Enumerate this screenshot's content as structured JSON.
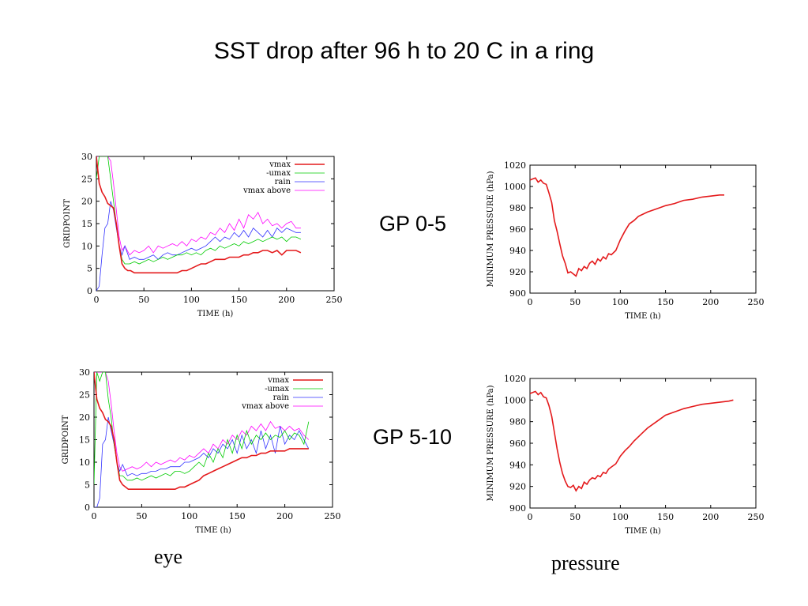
{
  "slide": {
    "title": "SST drop after 96 h to 20 C in a ring",
    "row_labels": [
      "GP 0-5",
      "GP 5-10"
    ],
    "column_labels": [
      "eye",
      "pressure"
    ]
  },
  "chart_data": [
    {
      "type": "line",
      "xlabel": "TIME (h)",
      "ylabel": "GRIDPOINT",
      "xlim": [
        0,
        250
      ],
      "ylim": [
        0,
        30
      ],
      "xticks": [
        0,
        50,
        100,
        150,
        200,
        250
      ],
      "yticks": [
        0,
        5,
        10,
        15,
        20,
        25,
        30
      ],
      "legend_position": "top-right",
      "colors": {
        "vmax": "#e41a1c",
        "umax": "#00cc00",
        "rain": "#3333ff",
        "vmax_above": "#ff00ff"
      },
      "series": [
        {
          "name": "vmax",
          "x": [
            0,
            3,
            6,
            9,
            12,
            15,
            18,
            21,
            24,
            27,
            30,
            33,
            36,
            40,
            45,
            50,
            55,
            60,
            65,
            70,
            75,
            80,
            85,
            90,
            95,
            100,
            105,
            110,
            115,
            120,
            125,
            130,
            135,
            140,
            145,
            150,
            155,
            160,
            165,
            170,
            175,
            180,
            185,
            190,
            195,
            200,
            205,
            210,
            215
          ],
          "y": [
            30,
            24,
            22,
            21,
            19.5,
            19,
            18.5,
            15,
            10,
            6,
            5,
            4.5,
            4.5,
            4,
            4,
            4,
            4,
            4,
            4,
            4,
            4,
            4,
            4,
            4.5,
            4.5,
            5,
            5.5,
            6,
            6,
            6.5,
            7,
            7,
            7,
            7.5,
            7.5,
            7.5,
            8,
            8,
            8.5,
            8.5,
            9,
            9,
            8.5,
            9,
            8,
            9,
            9,
            9,
            8.5
          ]
        },
        {
          "name": "umax",
          "x": [
            0,
            3,
            6,
            9,
            12,
            15,
            18,
            21,
            24,
            27,
            30,
            35,
            40,
            45,
            50,
            55,
            60,
            65,
            70,
            75,
            80,
            85,
            90,
            95,
            100,
            105,
            110,
            115,
            120,
            125,
            130,
            135,
            140,
            145,
            150,
            155,
            160,
            165,
            170,
            175,
            180,
            185,
            190,
            195,
            200,
            205,
            210,
            215
          ],
          "y": [
            25,
            30,
            30,
            30,
            30,
            25,
            20,
            15,
            10,
            7,
            6,
            6,
            6.5,
            6,
            6.5,
            7,
            6.5,
            7,
            7.5,
            7,
            7.5,
            8,
            8,
            8.5,
            8,
            8.5,
            8,
            9,
            9.5,
            9,
            10,
            9.5,
            10,
            10.5,
            10,
            11,
            10.5,
            11,
            11.5,
            11,
            11.5,
            12,
            11.5,
            12,
            11,
            12,
            12,
            11.5
          ]
        },
        {
          "name": "rain",
          "x": [
            0,
            3,
            6,
            9,
            12,
            15,
            18,
            21,
            24,
            27,
            30,
            35,
            40,
            45,
            50,
            55,
            60,
            65,
            70,
            75,
            80,
            85,
            90,
            95,
            100,
            105,
            110,
            115,
            120,
            125,
            130,
            135,
            140,
            145,
            150,
            155,
            160,
            165,
            170,
            175,
            180,
            185,
            190,
            195,
            200,
            205,
            210,
            215
          ],
          "y": [
            0,
            1,
            8,
            14,
            15,
            20,
            18,
            14,
            10,
            8,
            10,
            7,
            7.5,
            7,
            7,
            7.5,
            8,
            7,
            8,
            8.5,
            8,
            8,
            8.5,
            9,
            9.5,
            9,
            9.5,
            10,
            11,
            12,
            11,
            12,
            11.5,
            13,
            12,
            13.5,
            12,
            14,
            13,
            12,
            13.5,
            12,
            14,
            13,
            14,
            13.5,
            13,
            13
          ]
        },
        {
          "name": "vmax above",
          "x": [
            0,
            3,
            6,
            9,
            12,
            15,
            18,
            21,
            24,
            27,
            30,
            35,
            40,
            45,
            50,
            55,
            60,
            65,
            70,
            75,
            80,
            85,
            90,
            95,
            100,
            105,
            110,
            115,
            120,
            125,
            130,
            135,
            140,
            145,
            150,
            155,
            160,
            165,
            170,
            175,
            180,
            185,
            190,
            195,
            200,
            205,
            210,
            215
          ],
          "y": [
            30,
            30,
            30,
            30,
            30,
            29,
            24,
            18,
            12,
            9,
            10,
            8,
            9,
            8.5,
            9,
            10,
            8.5,
            10,
            9.5,
            10,
            10.5,
            10,
            11,
            10,
            11.5,
            11,
            12,
            11.5,
            13,
            12.5,
            14,
            13,
            15,
            13.5,
            16,
            14,
            17,
            16,
            17.5,
            15,
            16,
            14.5,
            15,
            14,
            15,
            15.5,
            14,
            14
          ]
        }
      ]
    },
    {
      "type": "line",
      "xlabel": "TIME (h)",
      "ylabel": "MINIMUM PRESSURE (hPa)",
      "xlim": [
        0,
        250
      ],
      "ylim": [
        900,
        1020
      ],
      "xticks": [
        0,
        50,
        100,
        150,
        200,
        250
      ],
      "yticks": [
        900,
        920,
        940,
        960,
        980,
        1000,
        1020
      ],
      "colors": {
        "pressure": "#e41a1c"
      },
      "series": [
        {
          "name": "",
          "x": [
            0,
            3,
            6,
            9,
            12,
            15,
            18,
            21,
            24,
            27,
            30,
            33,
            36,
            39,
            42,
            45,
            48,
            51,
            54,
            57,
            60,
            63,
            66,
            69,
            72,
            75,
            78,
            81,
            84,
            87,
            90,
            95,
            100,
            105,
            110,
            115,
            120,
            125,
            130,
            140,
            150,
            160,
            170,
            180,
            190,
            200,
            210,
            215
          ],
          "y": [
            1006,
            1007,
            1008,
            1004,
            1006,
            1003,
            1002,
            994,
            985,
            968,
            958,
            946,
            935,
            928,
            919,
            920,
            918,
            916,
            923,
            921,
            925,
            923,
            928,
            930,
            927,
            932,
            930,
            934,
            932,
            937,
            936,
            940,
            950,
            958,
            965,
            968,
            972,
            974,
            976,
            979,
            982,
            984,
            987,
            988,
            990,
            991,
            992,
            992
          ]
        }
      ]
    },
    {
      "type": "line",
      "xlabel": "TIME (h)",
      "ylabel": "GRIDPOINT",
      "xlim": [
        0,
        250
      ],
      "ylim": [
        0,
        30
      ],
      "xticks": [
        0,
        50,
        100,
        150,
        200,
        250
      ],
      "yticks": [
        0,
        5,
        10,
        15,
        20,
        25,
        30
      ],
      "legend_position": "top-right",
      "colors": {
        "vmax": "#e41a1c",
        "umax": "#00cc00",
        "rain": "#3333ff",
        "vmax_above": "#ff00ff"
      },
      "series": [
        {
          "name": "vmax",
          "x": [
            0,
            3,
            6,
            9,
            12,
            15,
            18,
            21,
            24,
            27,
            30,
            33,
            36,
            40,
            45,
            50,
            55,
            60,
            65,
            70,
            75,
            80,
            85,
            90,
            95,
            100,
            105,
            110,
            115,
            120,
            125,
            130,
            135,
            140,
            145,
            150,
            155,
            160,
            165,
            170,
            175,
            180,
            185,
            190,
            195,
            200,
            205,
            210,
            215,
            220,
            225
          ],
          "y": [
            30,
            24,
            22,
            21,
            19.5,
            19,
            18,
            15,
            10,
            6,
            5,
            4.5,
            4,
            4,
            4,
            4,
            4,
            4,
            4,
            4,
            4,
            4,
            4,
            4.5,
            4.5,
            5,
            5.5,
            6,
            7,
            7.5,
            8,
            8.5,
            9,
            9.5,
            10,
            10.5,
            11,
            11,
            11.5,
            11.5,
            12,
            12,
            12.5,
            12.5,
            12.5,
            12.5,
            13,
            13,
            13,
            13,
            13
          ]
        },
        {
          "name": "umax",
          "x": [
            0,
            3,
            6,
            9,
            12,
            15,
            18,
            21,
            24,
            27,
            30,
            35,
            40,
            45,
            50,
            55,
            60,
            65,
            70,
            75,
            80,
            85,
            90,
            95,
            100,
            105,
            110,
            115,
            120,
            125,
            130,
            135,
            140,
            145,
            150,
            155,
            160,
            165,
            170,
            175,
            180,
            185,
            190,
            195,
            200,
            205,
            210,
            215,
            220,
            225
          ],
          "y": [
            5,
            30,
            28,
            30,
            30,
            24,
            20,
            14,
            10,
            7,
            7,
            6,
            6,
            6.5,
            6,
            6.5,
            7,
            6.5,
            7,
            7.5,
            7,
            8,
            8,
            7.5,
            8,
            9,
            10,
            9,
            12,
            10,
            13,
            11,
            15,
            12,
            16,
            13,
            17,
            14,
            16,
            15,
            16.5,
            15,
            16,
            15.5,
            17,
            15,
            16.5,
            16,
            14,
            19
          ]
        },
        {
          "name": "rain",
          "x": [
            0,
            3,
            6,
            9,
            12,
            15,
            18,
            21,
            24,
            27,
            30,
            35,
            40,
            45,
            50,
            55,
            60,
            65,
            70,
            75,
            80,
            85,
            90,
            95,
            100,
            105,
            110,
            115,
            120,
            125,
            130,
            135,
            140,
            145,
            150,
            155,
            160,
            165,
            170,
            175,
            180,
            185,
            190,
            195,
            200,
            205,
            210,
            215,
            220,
            225
          ],
          "y": [
            0,
            0,
            2,
            14,
            15,
            20,
            17,
            14,
            10,
            8,
            9.5,
            7,
            7.5,
            7,
            7.5,
            7.5,
            8,
            8,
            8.5,
            8.5,
            9,
            9,
            9,
            10,
            10,
            10.5,
            11,
            12,
            11,
            13,
            12,
            14,
            13,
            15,
            12,
            16,
            13,
            15,
            12,
            17,
            13,
            16,
            12,
            18,
            14,
            16,
            15,
            17,
            15,
            13
          ]
        },
        {
          "name": "vmax above",
          "x": [
            0,
            3,
            6,
            9,
            12,
            15,
            18,
            21,
            24,
            27,
            30,
            35,
            40,
            45,
            50,
            55,
            60,
            65,
            70,
            75,
            80,
            85,
            90,
            95,
            100,
            105,
            110,
            115,
            120,
            125,
            130,
            135,
            140,
            145,
            150,
            155,
            160,
            165,
            170,
            175,
            180,
            185,
            190,
            195,
            200,
            205,
            210,
            215,
            220,
            225
          ],
          "y": [
            30,
            30,
            30,
            30,
            30,
            28,
            23,
            17,
            12,
            9,
            8,
            8.5,
            9,
            8.5,
            9,
            10,
            9,
            10,
            9.5,
            10,
            10.5,
            10,
            11,
            10.5,
            11.5,
            11,
            12,
            13,
            12,
            14,
            13,
            15,
            14,
            16,
            15,
            17,
            16,
            18,
            17,
            18.5,
            17,
            19,
            17.5,
            18,
            17,
            18,
            17,
            17.5,
            16,
            15
          ]
        }
      ]
    },
    {
      "type": "line",
      "xlabel": "TIME (h)",
      "ylabel": "MINIMUM PRESSURE (hPa)",
      "xlim": [
        0,
        250
      ],
      "ylim": [
        900,
        1020
      ],
      "xticks": [
        0,
        50,
        100,
        150,
        200,
        250
      ],
      "yticks": [
        900,
        920,
        940,
        960,
        980,
        1000,
        1020
      ],
      "colors": {
        "pressure": "#e41a1c"
      },
      "series": [
        {
          "name": "",
          "x": [
            0,
            3,
            6,
            9,
            12,
            15,
            18,
            21,
            24,
            27,
            30,
            33,
            36,
            39,
            42,
            45,
            48,
            51,
            54,
            57,
            60,
            63,
            66,
            69,
            72,
            75,
            78,
            81,
            84,
            87,
            90,
            95,
            100,
            105,
            110,
            115,
            120,
            125,
            130,
            140,
            150,
            160,
            170,
            180,
            190,
            200,
            210,
            220,
            225
          ],
          "y": [
            1006,
            1007,
            1008,
            1005,
            1007,
            1003,
            1002,
            995,
            985,
            970,
            955,
            942,
            932,
            925,
            920,
            919,
            921,
            916,
            920,
            918,
            924,
            922,
            926,
            928,
            927,
            930,
            929,
            933,
            932,
            936,
            938,
            941,
            948,
            953,
            957,
            962,
            966,
            970,
            974,
            980,
            986,
            989,
            992,
            994,
            996,
            997,
            998,
            999,
            1000
          ]
        }
      ]
    }
  ]
}
